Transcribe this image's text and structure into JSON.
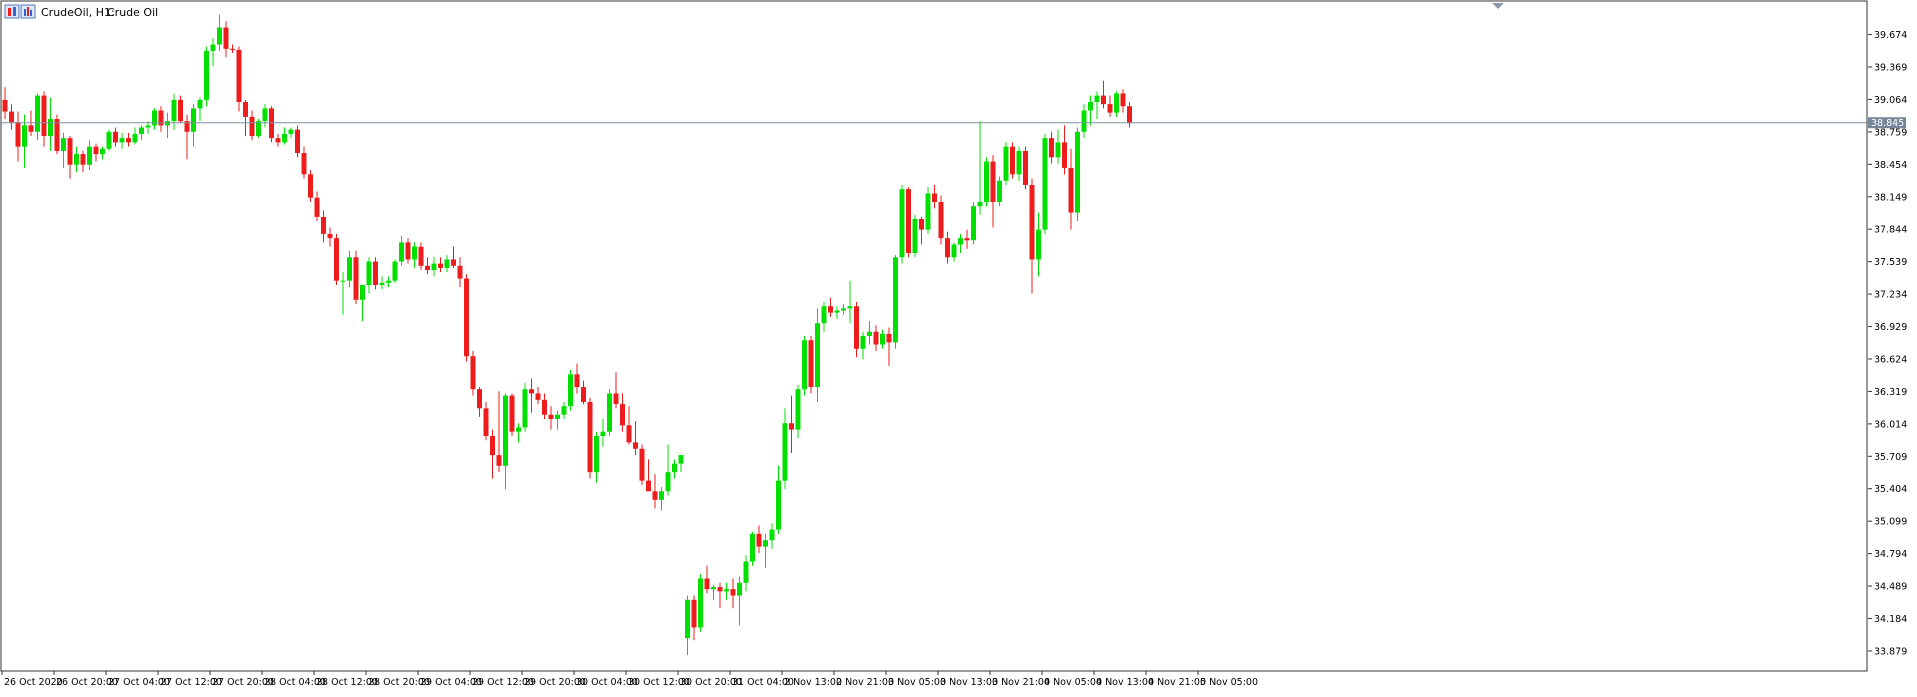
{
  "header": {
    "symbol_label": "CrudeOil, H1:",
    "description": "Crude Oil"
  },
  "colors": {
    "background": "#ffffff",
    "frame": "#333333",
    "text": "#000000",
    "bull": "#00e000",
    "bear": "#ee1c1c",
    "price_line": "#7f8fa0",
    "price_tag_bg": "#77879a",
    "price_tag_text": "#ffffff"
  },
  "chart_data": {
    "type": "candlestick",
    "title": "",
    "xlabel": "",
    "ylabel": "",
    "grid": false,
    "ylim": [
      33.7,
      39.98
    ],
    "current_price": 38.845,
    "current_price_label": "38.845",
    "y_ticks": [
      "39.674",
      "39.369",
      "39.064",
      "38.759",
      "38.454",
      "38.149",
      "37.844",
      "37.539",
      "37.234",
      "36.929",
      "36.624",
      "36.319",
      "36.014",
      "35.709",
      "35.404",
      "35.099",
      "34.794",
      "34.489",
      "34.184",
      "33.879"
    ],
    "x_labels": [
      "26 Oct 2020",
      "26 Oct 20:00",
      "27 Oct 04:00",
      "27 Oct 12:00",
      "27 Oct 20:00",
      "28 Oct 04:00",
      "28 Oct 12:00",
      "28 Oct 20:00",
      "29 Oct 04:00",
      "29 Oct 12:00",
      "29 Oct 20:00",
      "30 Oct 04:00",
      "30 Oct 12:00",
      "30 Oct 20:00",
      "31 Oct 04:00",
      "2 Nov 13:00",
      "2 Nov 21:00",
      "3 Nov 05:00",
      "3 Nov 13:00",
      "3 Nov 21:00",
      "4 Nov 05:00",
      "4 Nov 13:00",
      "4 Nov 21:00",
      "5 Nov 05:00"
    ],
    "x_label_candle_index": [
      0,
      8,
      16,
      24,
      32,
      40,
      48,
      56,
      64,
      72,
      80,
      88,
      96,
      104,
      112,
      120,
      128,
      136,
      144,
      152,
      160,
      168,
      176,
      184
    ],
    "candles": [
      [
        39.06,
        39.18,
        38.88,
        38.95
      ],
      [
        38.95,
        39.02,
        38.78,
        38.85
      ],
      [
        38.85,
        38.95,
        38.48,
        38.62
      ],
      [
        38.62,
        38.92,
        38.42,
        38.82
      ],
      [
        38.82,
        38.96,
        38.72,
        38.76
      ],
      [
        38.76,
        39.12,
        38.68,
        39.1
      ],
      [
        39.1,
        39.14,
        38.62,
        38.72
      ],
      [
        38.72,
        39.08,
        38.58,
        38.88
      ],
      [
        38.88,
        38.92,
        38.55,
        38.58
      ],
      [
        38.58,
        38.75,
        38.42,
        38.7
      ],
      [
        38.7,
        38.72,
        38.32,
        38.45
      ],
      [
        38.45,
        38.62,
        38.38,
        38.55
      ],
      [
        38.55,
        38.58,
        38.38,
        38.45
      ],
      [
        38.45,
        38.68,
        38.4,
        38.62
      ],
      [
        38.62,
        38.65,
        38.48,
        38.55
      ],
      [
        38.55,
        38.62,
        38.5,
        38.6
      ],
      [
        38.6,
        38.78,
        38.58,
        38.76
      ],
      [
        38.76,
        38.8,
        38.62,
        38.66
      ],
      [
        38.66,
        38.75,
        38.6,
        38.7
      ],
      [
        38.7,
        38.75,
        38.62,
        38.66
      ],
      [
        38.66,
        38.8,
        38.64,
        38.74
      ],
      [
        38.74,
        38.82,
        38.68,
        38.8
      ],
      [
        38.8,
        38.86,
        38.74,
        38.82
      ],
      [
        38.82,
        38.98,
        38.78,
        38.96
      ],
      [
        38.96,
        39.0,
        38.76,
        38.82
      ],
      [
        38.82,
        38.94,
        38.7,
        38.86
      ],
      [
        38.86,
        39.12,
        38.78,
        39.06
      ],
      [
        39.06,
        39.1,
        38.84,
        38.86
      ],
      [
        38.86,
        38.92,
        38.5,
        38.76
      ],
      [
        38.76,
        39.02,
        38.62,
        38.98
      ],
      [
        38.98,
        39.08,
        38.86,
        39.06
      ],
      [
        39.06,
        39.56,
        39.0,
        39.52
      ],
      [
        39.52,
        39.64,
        39.38,
        39.58
      ],
      [
        39.58,
        39.86,
        39.52,
        39.74
      ],
      [
        39.74,
        39.8,
        39.46,
        39.54
      ],
      [
        39.54,
        39.58,
        39.5,
        39.53
      ],
      [
        39.53,
        39.56,
        38.95,
        39.04
      ],
      [
        39.04,
        39.06,
        38.72,
        38.9
      ],
      [
        38.9,
        38.96,
        38.68,
        38.72
      ],
      [
        38.72,
        38.88,
        38.7,
        38.86
      ],
      [
        38.86,
        39.02,
        38.8,
        38.98
      ],
      [
        38.98,
        39.0,
        38.66,
        38.7
      ],
      [
        38.7,
        38.74,
        38.62,
        38.66
      ],
      [
        38.66,
        38.8,
        38.64,
        38.74
      ],
      [
        38.74,
        38.8,
        38.7,
        38.78
      ],
      [
        38.78,
        38.82,
        38.52,
        38.56
      ],
      [
        38.56,
        38.62,
        38.32,
        38.36
      ],
      [
        38.36,
        38.4,
        38.1,
        38.14
      ],
      [
        38.14,
        38.2,
        37.92,
        37.96
      ],
      [
        37.96,
        38.02,
        37.72,
        37.8
      ],
      [
        37.8,
        37.86,
        37.68,
        37.76
      ],
      [
        37.76,
        37.8,
        37.32,
        37.36
      ],
      [
        37.36,
        37.44,
        37.04,
        37.36
      ],
      [
        37.36,
        37.64,
        37.3,
        37.58
      ],
      [
        37.58,
        37.64,
        37.14,
        37.18
      ],
      [
        37.18,
        37.32,
        36.98,
        37.32
      ],
      [
        37.32,
        37.58,
        37.24,
        37.54
      ],
      [
        37.54,
        37.58,
        37.28,
        37.32
      ],
      [
        37.32,
        37.4,
        37.28,
        37.34
      ],
      [
        37.34,
        37.4,
        37.3,
        37.36
      ],
      [
        37.36,
        37.56,
        37.34,
        37.54
      ],
      [
        37.54,
        37.78,
        37.5,
        37.72
      ],
      [
        37.72,
        37.76,
        37.52,
        37.56
      ],
      [
        37.56,
        37.72,
        37.48,
        37.68
      ],
      [
        37.68,
        37.72,
        37.46,
        37.5
      ],
      [
        37.5,
        37.58,
        37.42,
        37.46
      ],
      [
        37.46,
        37.58,
        37.4,
        37.52
      ],
      [
        37.52,
        37.58,
        37.44,
        37.48
      ],
      [
        37.48,
        37.6,
        37.44,
        37.56
      ],
      [
        37.56,
        37.68,
        37.48,
        37.5
      ],
      [
        37.5,
        37.58,
        37.3,
        37.38
      ],
      [
        37.38,
        37.42,
        36.6,
        36.65
      ],
      [
        36.65,
        36.7,
        36.28,
        36.34
      ],
      [
        36.34,
        36.36,
        36.08,
        36.16
      ],
      [
        36.16,
        36.22,
        35.86,
        35.9
      ],
      [
        35.9,
        35.96,
        35.5,
        35.72
      ],
      [
        35.72,
        36.32,
        35.56,
        35.62
      ],
      [
        35.62,
        36.3,
        35.4,
        36.28
      ],
      [
        36.28,
        36.3,
        35.9,
        35.94
      ],
      [
        35.94,
        36.02,
        35.84,
        35.98
      ],
      [
        35.98,
        36.4,
        35.94,
        36.34
      ],
      [
        36.34,
        36.44,
        36.12,
        36.3
      ],
      [
        36.3,
        36.36,
        36.2,
        36.24
      ],
      [
        36.24,
        36.3,
        36.06,
        36.1
      ],
      [
        36.1,
        36.18,
        35.96,
        36.06
      ],
      [
        36.06,
        36.14,
        35.96,
        36.1
      ],
      [
        36.1,
        36.22,
        36.06,
        36.18
      ],
      [
        36.18,
        36.52,
        36.14,
        36.48
      ],
      [
        36.48,
        36.58,
        36.3,
        36.36
      ],
      [
        36.36,
        36.42,
        36.2,
        36.22
      ],
      [
        36.22,
        36.26,
        35.5,
        35.56
      ],
      [
        35.56,
        35.94,
        35.46,
        35.9
      ],
      [
        35.9,
        36.06,
        35.8,
        35.94
      ],
      [
        35.94,
        36.34,
        35.9,
        36.3
      ],
      [
        36.3,
        36.5,
        36.16,
        36.2
      ],
      [
        36.2,
        36.3,
        35.94,
        36.0
      ],
      [
        36.0,
        36.18,
        35.82,
        35.84
      ],
      [
        35.84,
        36.04,
        35.72,
        35.78
      ],
      [
        35.78,
        35.82,
        35.44,
        35.48
      ],
      [
        35.48,
        35.68,
        35.42,
        35.38
      ],
      [
        35.38,
        35.54,
        35.22,
        35.3
      ],
      [
        35.3,
        35.42,
        35.2,
        35.38
      ],
      [
        35.38,
        35.82,
        35.34,
        35.56
      ],
      [
        35.56,
        35.68,
        35.5,
        35.64
      ],
      [
        35.64,
        35.72,
        35.56,
        35.72
      ],
      [
        34.0,
        34.4,
        33.84,
        34.36
      ],
      [
        34.36,
        34.4,
        33.98,
        34.1
      ],
      [
        34.1,
        34.6,
        34.06,
        34.56
      ],
      [
        34.56,
        34.68,
        34.42,
        34.46
      ],
      [
        34.46,
        34.5,
        34.36,
        34.48
      ],
      [
        34.48,
        34.52,
        34.28,
        34.44
      ],
      [
        34.44,
        34.52,
        34.36,
        34.46
      ],
      [
        34.46,
        34.56,
        34.28,
        34.4
      ],
      [
        34.4,
        34.58,
        34.12,
        34.52
      ],
      [
        34.52,
        34.78,
        34.44,
        34.72
      ],
      [
        34.72,
        35.0,
        34.68,
        34.98
      ],
      [
        34.98,
        35.06,
        34.8,
        34.86
      ],
      [
        34.86,
        34.98,
        34.66,
        34.92
      ],
      [
        34.92,
        35.08,
        34.84,
        35.02
      ],
      [
        35.02,
        35.62,
        34.98,
        35.48
      ],
      [
        35.48,
        36.16,
        35.4,
        36.02
      ],
      [
        36.02,
        36.28,
        35.74,
        35.96
      ],
      [
        35.96,
        36.38,
        35.88,
        36.34
      ],
      [
        36.34,
        36.84,
        36.28,
        36.8
      ],
      [
        36.8,
        36.84,
        36.3,
        36.36
      ],
      [
        36.36,
        37.1,
        36.22,
        36.96
      ],
      [
        36.96,
        37.16,
        36.88,
        37.12
      ],
      [
        37.12,
        37.2,
        37.02,
        37.06
      ],
      [
        37.06,
        37.12,
        37.0,
        37.08
      ],
      [
        37.08,
        37.14,
        37.04,
        37.1
      ],
      [
        37.1,
        37.36,
        36.96,
        37.12
      ],
      [
        37.12,
        37.16,
        36.64,
        36.72
      ],
      [
        36.72,
        36.88,
        36.62,
        36.84
      ],
      [
        36.84,
        36.98,
        36.76,
        36.88
      ],
      [
        36.88,
        36.94,
        36.7,
        36.76
      ],
      [
        36.76,
        36.9,
        36.72,
        36.86
      ],
      [
        36.86,
        36.92,
        36.56,
        36.78
      ],
      [
        36.78,
        37.6,
        36.72,
        37.58
      ],
      [
        37.58,
        38.26,
        37.52,
        38.22
      ],
      [
        38.22,
        38.24,
        37.58,
        37.62
      ],
      [
        37.62,
        37.98,
        37.58,
        37.94
      ],
      [
        37.94,
        37.96,
        37.7,
        37.84
      ],
      [
        37.84,
        38.24,
        37.8,
        38.18
      ],
      [
        38.18,
        38.26,
        38.04,
        38.1
      ],
      [
        38.1,
        38.16,
        37.7,
        37.76
      ],
      [
        37.76,
        37.82,
        37.52,
        37.58
      ],
      [
        37.58,
        37.72,
        37.54,
        37.7
      ],
      [
        37.7,
        37.8,
        37.62,
        37.76
      ],
      [
        37.76,
        37.84,
        37.66,
        37.74
      ],
      [
        37.74,
        38.1,
        37.7,
        38.06
      ],
      [
        38.06,
        38.86,
        37.98,
        38.1
      ],
      [
        38.1,
        38.52,
        38.06,
        38.48
      ],
      [
        38.48,
        38.54,
        37.86,
        38.1
      ],
      [
        38.1,
        38.34,
        38.06,
        38.3
      ],
      [
        38.3,
        38.66,
        38.26,
        38.62
      ],
      [
        38.62,
        38.66,
        38.32,
        38.36
      ],
      [
        38.36,
        38.62,
        38.3,
        38.58
      ],
      [
        38.58,
        38.62,
        38.22,
        38.26
      ],
      [
        38.26,
        38.32,
        37.24,
        37.56
      ],
      [
        37.56,
        38.0,
        37.4,
        37.84
      ],
      [
        37.84,
        38.74,
        37.8,
        38.7
      ],
      [
        38.7,
        38.76,
        38.46,
        38.52
      ],
      [
        38.52,
        38.78,
        38.46,
        38.66
      ],
      [
        38.66,
        38.82,
        38.36,
        38.42
      ],
      [
        38.42,
        38.6,
        37.84,
        38.0
      ],
      [
        38.0,
        38.8,
        37.92,
        38.76
      ],
      [
        38.76,
        39.02,
        38.7,
        38.96
      ],
      [
        38.96,
        39.1,
        38.82,
        39.04
      ],
      [
        39.04,
        39.14,
        38.88,
        39.1
      ],
      [
        39.1,
        39.24,
        38.98,
        39.02
      ],
      [
        39.02,
        39.1,
        38.9,
        38.94
      ],
      [
        38.94,
        39.14,
        38.9,
        39.12
      ],
      [
        39.12,
        39.16,
        38.94,
        39.0
      ],
      [
        39.0,
        39.04,
        38.8,
        38.84
      ]
    ]
  }
}
